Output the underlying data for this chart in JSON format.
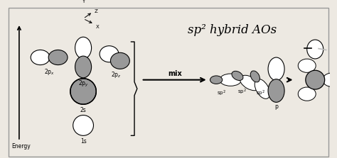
{
  "title": "sp² hybrid AOs",
  "bg_color": "#ede9e2",
  "border_color": "#999999",
  "gray_fill": "#999999",
  "gray_light": "#bbbbbb",
  "white_fill": "#ffffff",
  "energy_label": "Energy",
  "orbital_labels_sub": [
    "2p_x",
    "2p_y",
    "2p_z",
    "2s",
    "1s"
  ],
  "sp2_labels": [
    "sp²",
    "sp²",
    "sp²",
    "p"
  ],
  "mix_label": "mix"
}
